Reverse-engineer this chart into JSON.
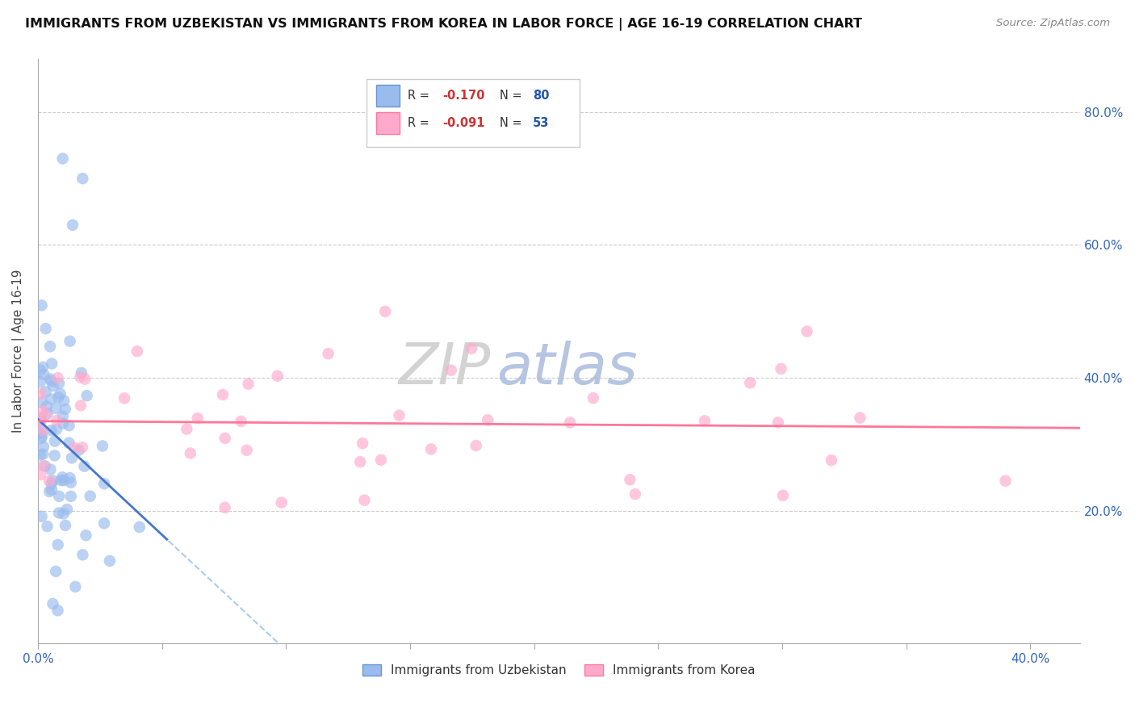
{
  "title": "IMMIGRANTS FROM UZBEKISTAN VS IMMIGRANTS FROM KOREA IN LABOR FORCE | AGE 16-19 CORRELATION CHART",
  "source": "Source: ZipAtlas.com",
  "ylabel": "In Labor Force | Age 16-19",
  "xlim": [
    0.0,
    0.42
  ],
  "ylim": [
    0.0,
    0.88
  ],
  "x_ticks": [
    0.0,
    0.05,
    0.1,
    0.15,
    0.2,
    0.25,
    0.3,
    0.35,
    0.4
  ],
  "x_tick_labels": [
    "0.0%",
    "",
    "",
    "",
    "",
    "",
    "",
    "",
    "40.0%"
  ],
  "y_ticks": [
    0.0,
    0.2,
    0.4,
    0.6,
    0.8
  ],
  "y_tick_labels_right": [
    "",
    "20.0%",
    "40.0%",
    "60.0%",
    "80.0%"
  ],
  "legend_r1": "-0.170",
  "legend_n1": "80",
  "legend_r2": "-0.091",
  "legend_n2": "53",
  "color_uzbekistan": "#99BBEE",
  "color_korea": "#FFAACC",
  "color_trend_uzbekistan": "#4477CC",
  "color_trend_korea": "#FF7799",
  "color_trend_dashed": "#AACCEE",
  "watermark_zip": "#CCCCCC",
  "watermark_atlas": "#AABBDD",
  "background_color": "#ffffff",
  "grid_color": "#CCCCCC"
}
